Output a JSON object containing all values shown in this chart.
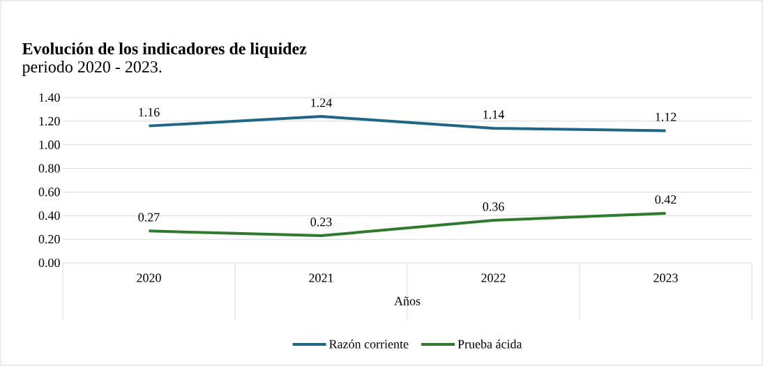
{
  "chart_data": {
    "type": "line",
    "title": "Evolución de los indicadores de liquidez",
    "subtitle": "periodo 2020 - 2023.",
    "xlabel": "Años",
    "categories": [
      "2020",
      "2021",
      "2022",
      "2023"
    ],
    "series": [
      {
        "name": "Razón corriente",
        "color": "#1f6688",
        "values": [
          1.16,
          1.24,
          1.14,
          1.12
        ]
      },
      {
        "name": "Prueba ácida",
        "color": "#2e7a2e",
        "values": [
          0.27,
          0.23,
          0.36,
          0.42
        ]
      }
    ],
    "ylim": [
      0,
      1.4
    ],
    "yticks": [
      {
        "value": 0,
        "label": "0.00"
      },
      {
        "value": 0.2,
        "label": "0.20"
      },
      {
        "value": 0.4,
        "label": "0.40"
      },
      {
        "value": 0.6,
        "label": "0.60"
      },
      {
        "value": 0.8,
        "label": "0.80"
      },
      {
        "value": 1.0,
        "label": "1.00"
      },
      {
        "value": 1.2,
        "label": "1.20"
      },
      {
        "value": 1.4,
        "label": "1.40"
      }
    ],
    "grid": "y",
    "legend": "bottom",
    "data_labels": true,
    "line_style": "solid"
  }
}
